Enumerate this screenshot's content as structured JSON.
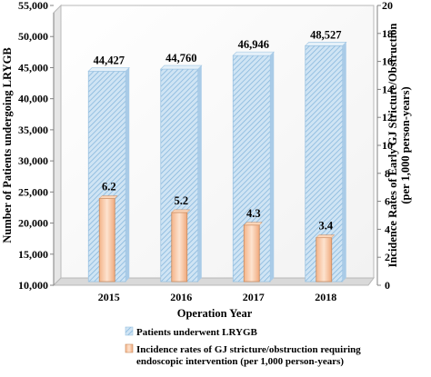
{
  "chart_data": {
    "type": "bar",
    "categories": [
      "2015",
      "2016",
      "2017",
      "2018"
    ],
    "xlabel": "Operation Year",
    "series": [
      {
        "name": "Patients underwent LRYGB",
        "axis": "left",
        "values": [
          44427,
          44760,
          46946,
          48527
        ],
        "labels": [
          "44,427",
          "44,760",
          "46,946",
          "48,527"
        ],
        "color": "#bcd8ee"
      },
      {
        "name": "Incidence rates of GJ stricture/obstruction requiring endoscopic intervention (per 1,000 person-years)",
        "axis": "right",
        "values": [
          6.2,
          5.2,
          4.3,
          3.4
        ],
        "labels": [
          "6.2",
          "5.2",
          "4.3",
          "3.4"
        ],
        "color": "#f6c4a0"
      }
    ],
    "y_left": {
      "label": "Number of Patients undergoing LRYGB",
      "ylim": [
        10000,
        55000
      ],
      "ticks": [
        "10,000",
        "15,000",
        "20,000",
        "25,000",
        "30,000",
        "35,000",
        "40,000",
        "45,000",
        "50,000",
        "55,000"
      ],
      "tick_values": [
        10000,
        15000,
        20000,
        25000,
        30000,
        35000,
        40000,
        45000,
        50000,
        55000
      ]
    },
    "y_right": {
      "label_lines": [
        "Incidence Rates of Early GJ Stricture/Obstruction",
        "(per 1,000 person-years)"
      ],
      "ylim": [
        0,
        20
      ],
      "ticks": [
        "0",
        "2",
        "4",
        "6",
        "8",
        "10",
        "12",
        "14",
        "16",
        "18",
        "20"
      ],
      "tick_values": [
        0,
        2,
        4,
        6,
        8,
        10,
        12,
        14,
        16,
        18,
        20
      ]
    },
    "legend": {
      "position": "bottom",
      "items": [
        {
          "lines": [
            "Patients underwent LRYGB"
          ]
        },
        {
          "lines": [
            "Incidence rates of GJ stricture/obstruction requiring",
            "endoscopic intervention (per 1,000 person-years)"
          ]
        }
      ]
    },
    "grid": false,
    "plot_area_3d": true
  }
}
